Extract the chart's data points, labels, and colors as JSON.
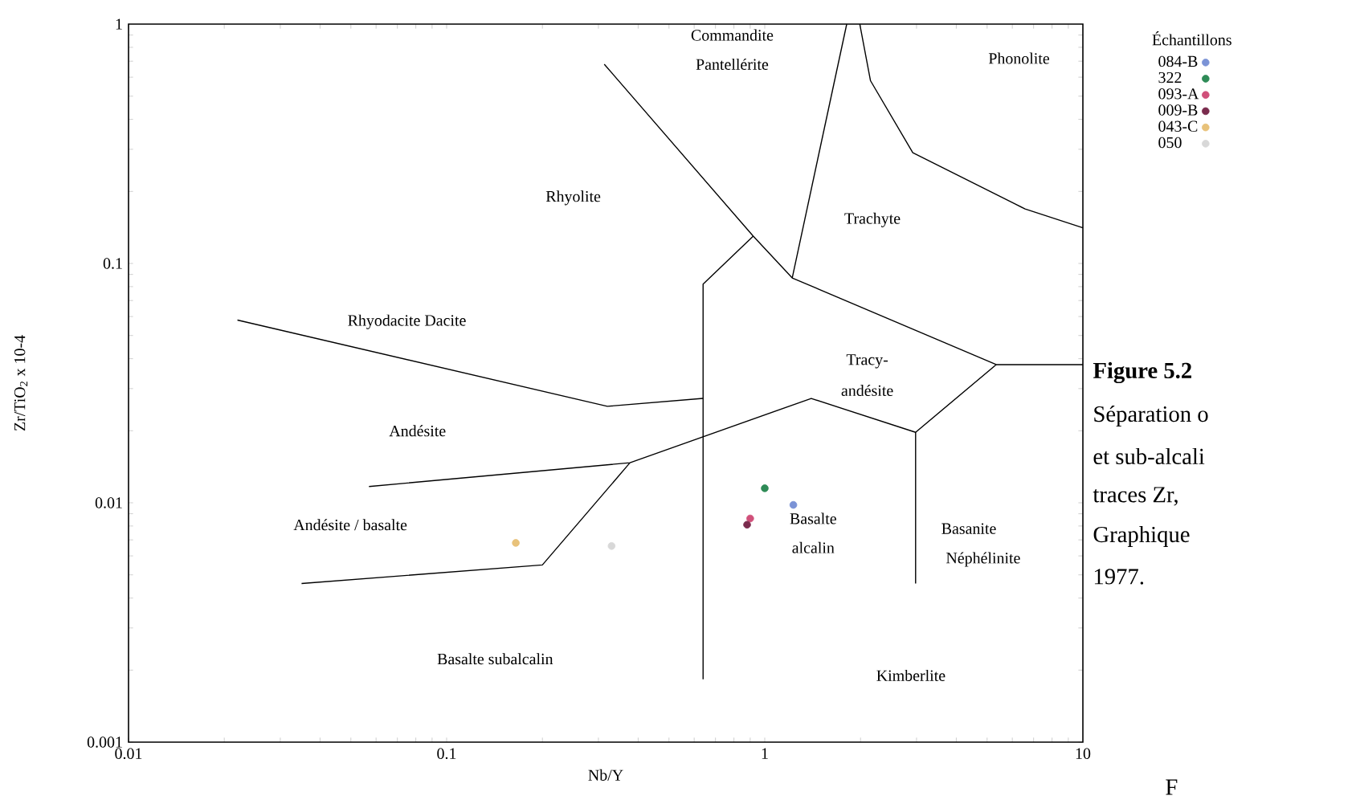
{
  "chart_data": {
    "type": "scatter",
    "xlabel": "Nb/Y",
    "ylabel": "Zr/TiO$_{2}$ x 10-4",
    "legend_title": "Échantillons",
    "log": "xy",
    "grid": false,
    "legend": "top right",
    "marker": "circle",
    "xlim": [
      0.01,
      10
    ],
    "ylim": [
      0.001,
      1
    ],
    "xticks": [
      0.01,
      0.1,
      1,
      10
    ],
    "yticks": [
      0.001,
      0.01,
      0.1,
      1
    ],
    "series": [
      {
        "type": "line",
        "marker": "none",
        "color": "#000000",
        "x": [
          0.313,
          0.92,
          1.22,
          5.34,
          10
        ],
        "values": [
          0.68,
          0.13,
          0.087,
          0.0378,
          0.0378
        ]
      },
      {
        "type": "line",
        "marker": "none",
        "color": "#000000",
        "x": [
          0.92,
          0.64,
          0.64
        ],
        "values": [
          0.13,
          0.082,
          0.00183
        ]
      },
      {
        "type": "line",
        "marker": "none",
        "color": "#000000",
        "x": [
          0.022,
          0.32,
          0.64
        ],
        "values": [
          0.058,
          0.0253,
          0.0273
        ]
      },
      {
        "type": "line",
        "marker": "none",
        "color": "#000000",
        "x": [
          1.22,
          1.81
        ],
        "values": [
          0.087,
          1
        ]
      },
      {
        "type": "line",
        "marker": "none",
        "color": "#000000",
        "x": [
          1.99,
          2.15,
          2.92,
          6.58,
          10
        ],
        "values": [
          1,
          0.58,
          0.29,
          0.169,
          0.141
        ]
      },
      {
        "type": "line",
        "marker": "none",
        "color": "#000000",
        "x": [
          5.34,
          2.98,
          1.4,
          0.377,
          0.057
        ],
        "values": [
          0.0378,
          0.0197,
          0.0273,
          0.0147,
          0.0117
        ]
      },
      {
        "type": "line",
        "marker": "none",
        "color": "#000000",
        "x": [
          2.98,
          2.98
        ],
        "values": [
          0.0197,
          0.0046
        ]
      },
      {
        "type": "line",
        "marker": "none",
        "color": "#000000",
        "x": [
          0.377,
          0.2,
          0.035
        ],
        "values": [
          0.0147,
          0.0055,
          0.0046
        ]
      },
      {
        "name": "084-B",
        "color": "#7b93d6",
        "x": [
          1.23
        ],
        "values": [
          0.0098
        ]
      },
      {
        "name": "322",
        "color": "#2e8b57",
        "x": [
          1.0
        ],
        "values": [
          0.0115
        ]
      },
      {
        "name": "093-A",
        "color": "#d0507a",
        "x": [
          0.9
        ],
        "values": [
          0.0086
        ]
      },
      {
        "name": "009-B",
        "color": "#7a2b4d",
        "x": [
          0.88
        ],
        "values": [
          0.0081
        ]
      },
      {
        "name": "043-C",
        "color": "#e8c27a",
        "x": [
          0.165
        ],
        "values": [
          0.0068
        ]
      },
      {
        "name": "050",
        "color": "#d8d8d8",
        "x": [
          0.33
        ],
        "values": [
          0.0066
        ]
      }
    ],
    "annotations": [
      "Commandite",
      "Pantellérite",
      "Phonolite",
      "Rhyolite",
      "Trachyte",
      "Rhyodacite  Dacite",
      "Tracy-",
      "andésite",
      "Andésite",
      "Andésite / basalte",
      "Basalte",
      "alcalin",
      "Basanite",
      "Néphélinite",
      "Basalte subalcalin",
      "Kimberlite",
      "Figure 5.2",
      "Séparation o",
      "et sub-alcali",
      "traces  Zr,",
      "Graphique",
      "1977.",
      "F"
    ]
  }
}
